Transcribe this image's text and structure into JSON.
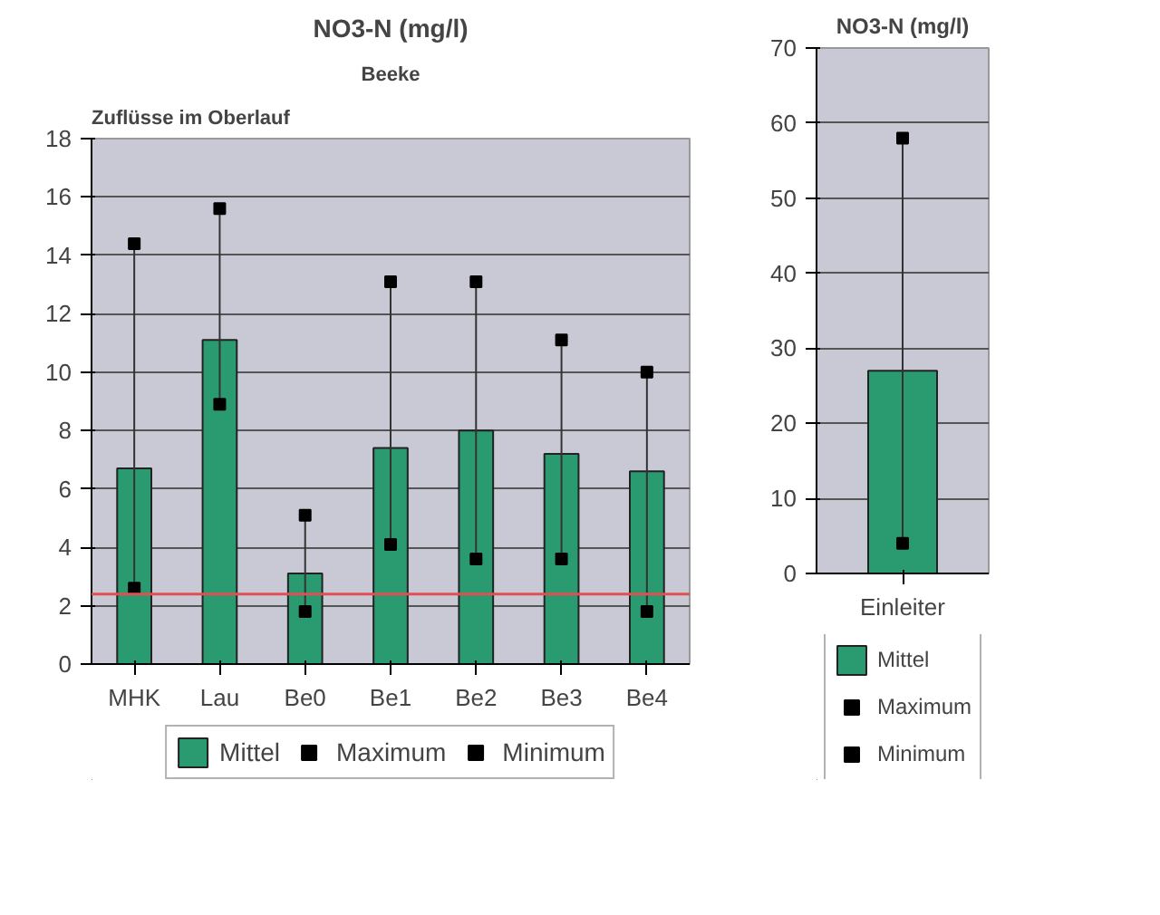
{
  "chart_data": [
    {
      "type": "bar",
      "title": "NO3-N (mg/l)",
      "categories": [
        "MHK",
        "Lau",
        "Be0",
        "Be1",
        "Be2",
        "Be3",
        "Be4"
      ],
      "series": [
        {
          "name": "Mittel",
          "color": "#2a9a70",
          "values": [
            6.7,
            11.1,
            3.1,
            7.4,
            8.0,
            7.2,
            6.6
          ]
        },
        {
          "name": "Maximum",
          "type": "scatter",
          "marker": "square",
          "color": "#000000",
          "values": [
            14.4,
            15.6,
            5.1,
            13.1,
            13.1,
            11.1,
            10.0
          ]
        },
        {
          "name": "Minimum",
          "type": "scatter",
          "marker": "square",
          "color": "#000000",
          "values": [
            2.6,
            8.9,
            1.8,
            4.1,
            3.6,
            3.6,
            1.8
          ]
        }
      ],
      "ylim": [
        0,
        18
      ],
      "yticks": [
        0,
        2,
        4,
        6,
        8,
        10,
        12,
        14,
        16,
        18
      ],
      "grid": "y",
      "legend": "bottom",
      "annotations": [
        "Zuflüsse im Oberlauf",
        "Beeke"
      ],
      "ref_lines": [
        {
          "axis": "y",
          "value": 2.4,
          "color": "#e05050"
        }
      ]
    },
    {
      "type": "bar",
      "title": "NO3-N (mg/l)",
      "categories": [
        "Einleiter"
      ],
      "series": [
        {
          "name": "Mittel",
          "color": "#2a9a70",
          "values": [
            27
          ]
        },
        {
          "name": "Maximum",
          "type": "scatter",
          "marker": "square",
          "color": "#000000",
          "values": [
            58
          ]
        },
        {
          "name": "Minimum",
          "type": "scatter",
          "marker": "square",
          "color": "#000000",
          "values": [
            4
          ]
        }
      ],
      "ylim": [
        0,
        70
      ],
      "yticks": [
        0,
        10,
        20,
        30,
        40,
        50,
        60,
        70
      ],
      "grid": "y",
      "legend": "bottom"
    }
  ]
}
